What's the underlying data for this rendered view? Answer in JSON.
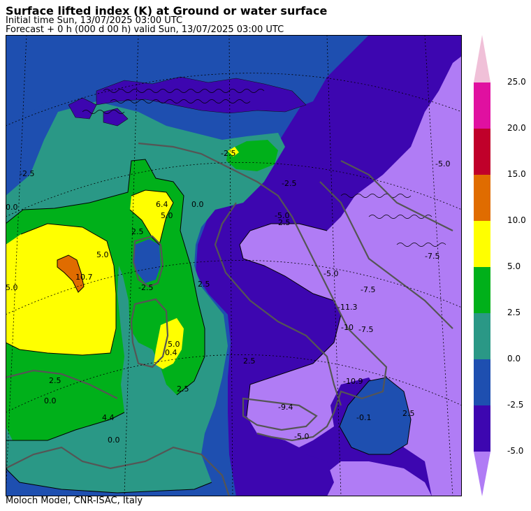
{
  "header": {
    "title": "Surface lifted index (K) at Ground or water surface",
    "initial_time": "Initial time  Sun, 13/07/2025  03:00 UTC",
    "forecast": "Forecast  +    0 h  (000 d 00 h)  valid Sun, 13/07/2025 03:00 UTC"
  },
  "footer": "Moloch Model, CNR-ISAC, Italy",
  "colors": {
    "below_-5": "#b07cf5",
    "-5_to_-2.5": "#3d06b0",
    "-2.5_to_0": "#1e4fb0",
    "0_to_2.5": "#2a9886",
    "2.5_to_5": "#00b01a",
    "5_to_10": "#ffff00",
    "10_to_15": "#e06c00",
    "15_to_20": "#c0002a",
    "20_to_25": "#e010a0",
    "above_25": "#f0c0d8",
    "coastline": "#555555"
  },
  "legend": {
    "ticks": [
      "25.0",
      "20.0",
      "15.0",
      "10.0",
      "5.0",
      "2.5",
      "0.0",
      "-2.5",
      "-5.0"
    ],
    "bands": [
      {
        "range": "20.0 to 25.0",
        "color": "#e010a0"
      },
      {
        "range": "15.0 to 20.0",
        "color": "#c0002a"
      },
      {
        "range": "10.0 to 15.0",
        "color": "#e06c00"
      },
      {
        "range": "5.0 to 10.0",
        "color": "#ffff00"
      },
      {
        "range": "2.5 to 5.0",
        "color": "#00b01a"
      },
      {
        "range": "0.0 to 2.5",
        "color": "#2a9886"
      },
      {
        "range": "-2.5 to 0.0",
        "color": "#1e4fb0"
      },
      {
        "range": "-5.0 to -2.5",
        "color": "#3d06b0"
      }
    ],
    "top_arrow_color": "#f0c0d8",
    "bottom_arrow_color": "#b07cf5"
  },
  "map_labels": [
    "-2.5",
    "6.4",
    "0.0",
    "-2.5",
    "10.7",
    "2.5",
    "5.0",
    "2.5",
    "5.0",
    "-5.0",
    "2.5",
    "-7.5",
    "-11.3",
    "-10",
    "-7.5",
    "-5.0",
    "2.5",
    "-10.9",
    "-9.4",
    "-5.0",
    "0.4",
    "2.5",
    "5.0",
    "2.5",
    "0.0",
    "4.4",
    "0.0",
    "-0.1",
    "2.5",
    "5.0",
    "-2.5",
    "0.0",
    "-5.0",
    "-2.5",
    "-7.5"
  ]
}
